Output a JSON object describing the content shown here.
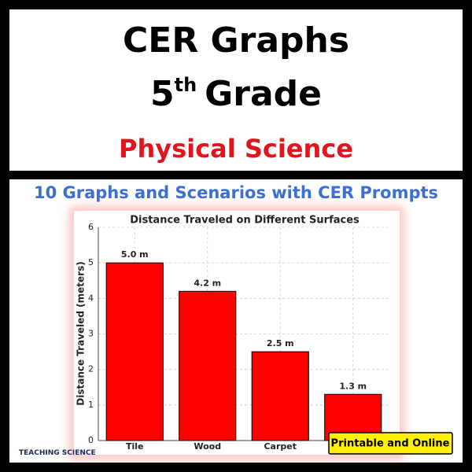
{
  "header": {
    "title": "CER Graphs",
    "grade_number": "5",
    "grade_suffix": "th",
    "grade_word": "Grade",
    "subject": "Physical Science"
  },
  "subtitle": "10 Graphs and Scenarios with CER Prompts",
  "badge": "Printable and Online",
  "logo": "TEACHING SCIENCE",
  "chart_data": {
    "type": "bar",
    "title": "Distance Traveled on Different Surfaces",
    "y_label": "Distance Traveled (meters)",
    "categories": [
      "Tile",
      "Wood",
      "Carpet",
      null
    ],
    "values": [
      5.0,
      4.2,
      2.5,
      1.3
    ],
    "value_labels": [
      "5.0 m",
      "4.2 m",
      "2.5 m",
      "1.3 m"
    ],
    "color": "#ff0000",
    "ylim": [
      0,
      6
    ],
    "yticks": [
      0,
      1,
      2,
      3,
      4,
      5,
      6
    ],
    "grid": true
  }
}
